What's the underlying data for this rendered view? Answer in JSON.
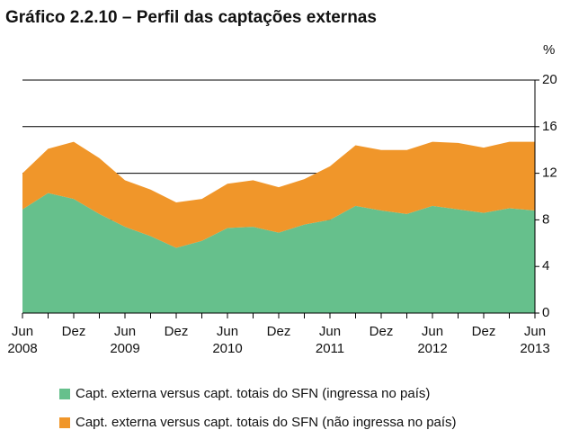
{
  "chart_data": {
    "type": "stacked_area",
    "title": "Gráfico 2.2.10 – Perfil das captações externas",
    "y_unit": "%",
    "categories": [
      "Jun",
      null,
      "Dez",
      null,
      "Jun",
      null,
      "Dez",
      null,
      "Jun",
      null,
      "Dez",
      null,
      "Jun",
      null,
      "Dez",
      null,
      "Jun",
      null,
      "Dez",
      null,
      "Jun"
    ],
    "category_years": [
      "2008",
      null,
      null,
      null,
      "2009",
      null,
      null,
      null,
      "2010",
      null,
      null,
      null,
      "2011",
      null,
      null,
      null,
      "2012",
      null,
      null,
      null,
      "2013"
    ],
    "series": [
      {
        "name": "Capt. externa versus capt. totais do SFN (ingressa no país)",
        "color": "#66c08c",
        "values": [
          8.9,
          10.3,
          9.8,
          8.5,
          7.4,
          6.6,
          5.6,
          6.2,
          7.3,
          7.4,
          6.9,
          7.6,
          8.0,
          9.2,
          8.8,
          8.5,
          9.2,
          8.9,
          8.6,
          9.0,
          8.8
        ]
      },
      {
        "name": "Capt. externa versus capt. totais do SFN (não ingressa no país)",
        "color": "#f0962a",
        "values": [
          3.1,
          3.8,
          4.9,
          4.8,
          4.0,
          4.0,
          3.9,
          3.6,
          3.8,
          4.0,
          3.9,
          3.9,
          4.6,
          5.2,
          5.2,
          5.5,
          5.5,
          5.7,
          5.6,
          5.7,
          5.9
        ]
      }
    ],
    "ylim": [
      0,
      20
    ],
    "yticks": [
      0,
      4,
      8,
      12,
      16,
      20
    ],
    "grid": true
  }
}
